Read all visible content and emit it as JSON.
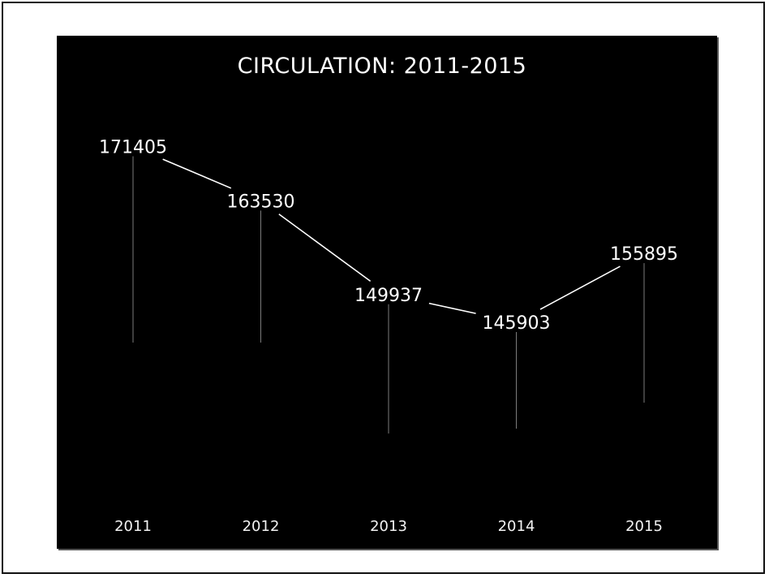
{
  "chart_data": {
    "type": "line",
    "title": "CIRCULATION: 2011-2015",
    "xlabel": "",
    "ylabel": "",
    "categories": [
      "2011",
      "2012",
      "2013",
      "2014",
      "2015"
    ],
    "values": [
      171405,
      163530,
      149937,
      145903,
      155895
    ],
    "data_labels": [
      "171405",
      "163530",
      "149937",
      "145903",
      "155895"
    ],
    "ylim": [
      130000,
      175000
    ],
    "grid": false,
    "legend": "none",
    "drop_lines": true,
    "colors": {
      "background": "#000000",
      "text": "#ffffff",
      "line": "#ffffff"
    }
  }
}
